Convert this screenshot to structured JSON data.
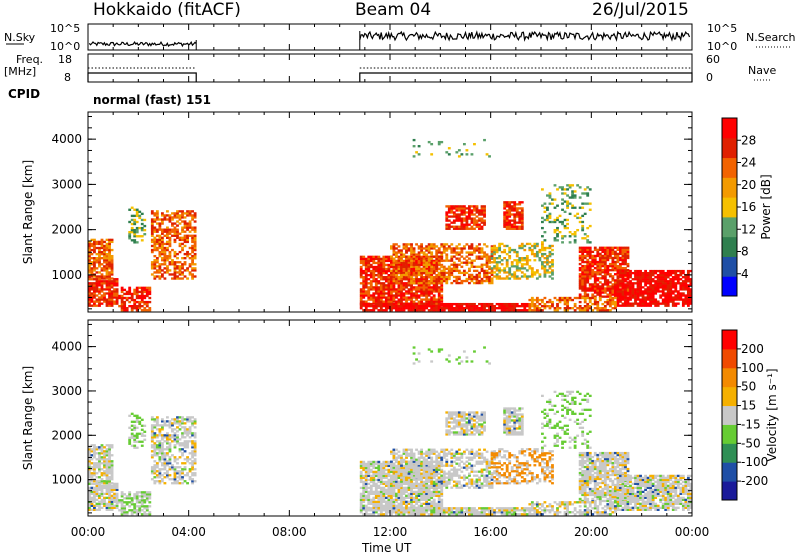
{
  "header": {
    "title": "Hokkaido (fitACF)",
    "beam": "Beam 04",
    "date": "26/Jul/2015"
  },
  "panels": {
    "nsky_label": "N.Sky",
    "nsearch_label": "N.Search",
    "nsky_ticks": [
      "10^5",
      "10^0"
    ],
    "nsearch_ticks": [
      "10^5",
      "10^0"
    ],
    "freq_label_1": "Freq.",
    "freq_label_2": "[MHz]",
    "freq_ticks": [
      "18",
      "8"
    ],
    "nave_label": "Nave",
    "nave_ticks": [
      "60",
      "0"
    ],
    "cpid_label": "CPID",
    "cpid_text": "normal (fast) 151"
  },
  "colors": {
    "power": [
      "#0000ff",
      "#1f4fa6",
      "#2f7f4f",
      "#5aa06a",
      "#f5c000",
      "#f39a00",
      "#f26300",
      "#e02000",
      "#ff0000"
    ],
    "velocity": [
      "#ff0000",
      "#f04a00",
      "#f38a00",
      "#f5b000",
      "#c8c8c8",
      "#66cc33",
      "#2f8f55",
      "#1f4fa6",
      "#1a1a9a"
    ],
    "ground_scatter": "#c8c8c8"
  },
  "chart_data": [
    {
      "type": "heatmap",
      "name": "power",
      "ylabel": "Slant Range [km]",
      "ylim": [
        180,
        4600
      ],
      "yticks": [
        1000,
        2000,
        3000,
        4000
      ],
      "xlabel": "",
      "xticks": [
        "00:00",
        "04:00",
        "08:00",
        "12:00",
        "16:00",
        "20:00",
        "00:00"
      ],
      "colorbar": {
        "label": "Power [dB]",
        "ticks": [
          4,
          8,
          12,
          16,
          20,
          24,
          28
        ],
        "range": [
          0,
          30
        ]
      },
      "data_gap_hours": [
        4.3,
        10.8
      ]
    },
    {
      "type": "heatmap",
      "name": "velocity",
      "ylabel": "Slant Range [km]",
      "ylim": [
        180,
        4600
      ],
      "yticks": [
        1000,
        2000,
        3000,
        4000
      ],
      "xlabel": "Time UT",
      "xticks": [
        "00:00",
        "04:00",
        "08:00",
        "12:00",
        "16:00",
        "20:00",
        "00:00"
      ],
      "colorbar": {
        "label": "Velocity [m s⁻¹]",
        "ticks": [
          200,
          100,
          50,
          15,
          -15,
          -50,
          -100,
          -200
        ]
      },
      "data_gap_hours": [
        4.3,
        10.8
      ]
    }
  ]
}
